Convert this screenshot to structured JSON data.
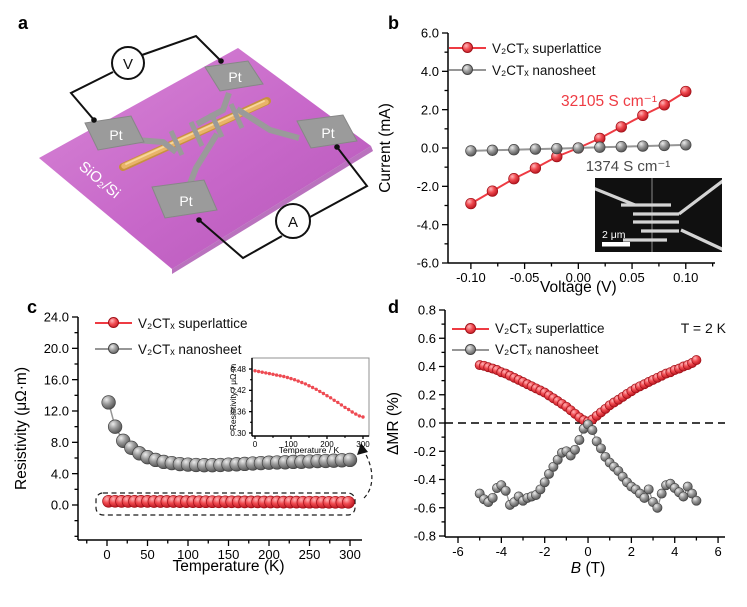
{
  "panels": {
    "a": {
      "letter": "a"
    },
    "b": {
      "letter": "b"
    },
    "c": {
      "letter": "c"
    },
    "d": {
      "letter": "d"
    }
  },
  "panel_a": {
    "substrate_label": "SiO₂/Si",
    "electrode_labels": [
      "Pt",
      "Pt",
      "Pt",
      "Pt"
    ],
    "voltmeter_label": "V",
    "ammeter_label": "A"
  },
  "sem_inset": {
    "scale_bar_label": "2 μm"
  },
  "colors": {
    "superlattice": "#ee3b43",
    "nanosheet": "#969696"
  },
  "chart_data": [
    {
      "id": "b",
      "type": "line",
      "xlabel": "Voltage (V)",
      "ylabel": "Current (mA)",
      "xlim": [
        -0.12,
        0.12
      ],
      "ylim": [
        -6,
        6
      ],
      "xticks": {
        "values": [
          -0.1,
          -0.05,
          0,
          0.05,
          0.1
        ],
        "labels": [
          "-0.10",
          "-0.05",
          "0.00",
          "0.05",
          "0.10"
        ]
      },
      "yticks": {
        "values": [
          -6,
          -4,
          -2,
          0,
          2,
          4,
          6
        ],
        "labels": [
          "-6.0",
          "-4.0",
          "-2.0",
          "0.0",
          "2.0",
          "4.0",
          "6.0"
        ]
      },
      "legend_position": "top-left",
      "series": [
        {
          "name": "V₂CTₓ superlattice",
          "color": "#ee3b43",
          "marker": "red",
          "x": [
            -0.1,
            -0.08,
            -0.06,
            -0.04,
            -0.02,
            0,
            0.02,
            0.04,
            0.06,
            0.08,
            0.1
          ],
          "y": [
            -2.9,
            -2.25,
            -1.6,
            -1.05,
            -0.45,
            0.0,
            0.5,
            1.1,
            1.7,
            2.25,
            2.95
          ]
        },
        {
          "name": "V₂CTₓ nanosheet",
          "color": "#969696",
          "marker": "gray",
          "x": [
            -0.1,
            -0.08,
            -0.06,
            -0.04,
            -0.02,
            0,
            0.02,
            0.04,
            0.06,
            0.08,
            0.1
          ],
          "y": [
            -0.15,
            -0.12,
            -0.09,
            -0.06,
            -0.03,
            0.0,
            0.04,
            0.07,
            0.1,
            0.13,
            0.16
          ]
        }
      ],
      "annotations": [
        {
          "text": "32105 S cm⁻¹",
          "color": "#ee3b43"
        },
        {
          "text": "1374 S cm⁻¹",
          "color": "#4a4a4a"
        }
      ]
    },
    {
      "id": "c",
      "type": "line",
      "xlabel": "Temperature (K)",
      "ylabel": "Resistivity (μΩ·m)",
      "xlim": [
        -25,
        325
      ],
      "ylim": [
        -4,
        25
      ],
      "xticks": {
        "values": [
          0,
          50,
          100,
          150,
          200,
          250,
          300
        ],
        "labels": [
          "0",
          "50",
          "100",
          "150",
          "200",
          "250",
          "300"
        ]
      },
      "yticks": {
        "values": [
          0,
          4,
          8,
          12,
          16,
          20,
          24
        ],
        "labels": [
          "0.0",
          "4.0",
          "8.0",
          "12.0",
          "16.0",
          "20.0",
          "24.0"
        ]
      },
      "legend_position": "top-left",
      "series": [
        {
          "name": "V₂CTₓ superlattice",
          "color": "#ee3b43",
          "marker": "red",
          "x": [
            2,
            10,
            18,
            26,
            34,
            42,
            50,
            58,
            66,
            74,
            82,
            90,
            98,
            106,
            114,
            122,
            130,
            138,
            146,
            154,
            162,
            170,
            178,
            186,
            194,
            202,
            210,
            218,
            226,
            234,
            242,
            250,
            258,
            266,
            274,
            282,
            290,
            298
          ],
          "y": [
            0.47,
            0.467,
            0.464,
            0.461,
            0.458,
            0.455,
            0.452,
            0.449,
            0.446,
            0.443,
            0.44,
            0.436,
            0.432,
            0.428,
            0.424,
            0.42,
            0.416,
            0.412,
            0.408,
            0.404,
            0.4,
            0.396,
            0.392,
            0.388,
            0.384,
            0.38,
            0.376,
            0.372,
            0.368,
            0.364,
            0.36,
            0.357,
            0.354,
            0.351,
            0.349,
            0.347,
            0.346,
            0.345
          ]
        },
        {
          "name": "V₂CTₓ nanosheet",
          "color": "#969696",
          "marker": "gray",
          "x": [
            2,
            10,
            20,
            30,
            40,
            50,
            60,
            70,
            80,
            90,
            100,
            110,
            120,
            130,
            140,
            150,
            160,
            170,
            180,
            190,
            200,
            210,
            220,
            230,
            240,
            250,
            260,
            270,
            280,
            290,
            300
          ],
          "y": [
            13.1,
            10.0,
            8.2,
            7.3,
            6.6,
            6.1,
            5.75,
            5.5,
            5.35,
            5.22,
            5.15,
            5.1,
            5.08,
            5.08,
            5.1,
            5.15,
            5.2,
            5.25,
            5.3,
            5.35,
            5.4,
            5.42,
            5.45,
            5.5,
            5.52,
            5.55,
            5.6,
            5.62,
            5.65,
            5.7,
            5.75
          ]
        }
      ]
    },
    {
      "id": "c_inset",
      "type": "line",
      "xlabel": "Temperature / K",
      "ylabel": "Resistivity / μΩ·m",
      "xlim": [
        -10,
        315
      ],
      "ylim": [
        0.29,
        0.51
      ],
      "xticks": {
        "values": [
          0,
          100,
          200,
          300
        ],
        "labels": [
          "0",
          "100",
          "200",
          "300"
        ]
      },
      "yticks": {
        "values": [
          0.3,
          0.36,
          0.42,
          0.48
        ],
        "labels": [
          "0.30",
          "0.36",
          "0.42",
          "0.48"
        ]
      },
      "series": [
        {
          "name": "V₂CTₓ superlattice",
          "color": "#ee4a52",
          "marker": "red",
          "x": [
            0,
            10,
            20,
            30,
            40,
            50,
            60,
            70,
            80,
            90,
            100,
            110,
            120,
            130,
            140,
            150,
            160,
            170,
            180,
            190,
            200,
            210,
            220,
            230,
            240,
            250,
            260,
            270,
            280,
            290,
            300
          ],
          "y": [
            0.475,
            0.473,
            0.471,
            0.469,
            0.467,
            0.465,
            0.463,
            0.461,
            0.459,
            0.456,
            0.453,
            0.45,
            0.446,
            0.442,
            0.438,
            0.433,
            0.428,
            0.423,
            0.417,
            0.411,
            0.405,
            0.399,
            0.392,
            0.386,
            0.379,
            0.372,
            0.366,
            0.359,
            0.353,
            0.348,
            0.345
          ]
        }
      ]
    },
    {
      "id": "d",
      "type": "line",
      "xlabel": "B (T)",
      "xlabel_italic_prefix": "B",
      "xlabel_rest": " (T)",
      "ylabel": "ΔMR (%)",
      "xlim": [
        -6.5,
        6.5
      ],
      "ylim": [
        -0.8,
        0.8
      ],
      "zero_line": true,
      "extra_label": "T = 2 K",
      "xticks": {
        "values": [
          -6,
          -4,
          -2,
          0,
          2,
          4,
          6
        ],
        "labels": [
          "-6",
          "-4",
          "-2",
          "0",
          "2",
          "4",
          "6"
        ]
      },
      "yticks": {
        "values": [
          -0.8,
          -0.6,
          -0.4,
          -0.2,
          0,
          0.2,
          0.4,
          0.6,
          0.8
        ],
        "labels": [
          "-0.8",
          "-0.6",
          "-0.4",
          "-0.2",
          "0.0",
          "0.2",
          "0.4",
          "0.6",
          "0.8"
        ]
      },
      "legend_position": "top-left",
      "series": [
        {
          "name": "V₂CTₓ superlattice",
          "color": "#ee3b43",
          "marker": "red",
          "x": [
            -5,
            -4.8,
            -4.6,
            -4.4,
            -4.2,
            -4,
            -3.8,
            -3.6,
            -3.4,
            -3.2,
            -3,
            -2.8,
            -2.6,
            -2.4,
            -2.2,
            -2,
            -1.8,
            -1.6,
            -1.4,
            -1.2,
            -1,
            -0.8,
            -0.6,
            -0.4,
            -0.2,
            0,
            0.2,
            0.4,
            0.6,
            0.8,
            1,
            1.2,
            1.4,
            1.6,
            1.8,
            2,
            2.2,
            2.4,
            2.6,
            2.8,
            3,
            3.2,
            3.4,
            3.6,
            3.8,
            4,
            4.2,
            4.4,
            4.6,
            4.8,
            5
          ],
          "y": [
            0.41,
            0.405,
            0.395,
            0.385,
            0.375,
            0.36,
            0.35,
            0.335,
            0.32,
            0.305,
            0.29,
            0.275,
            0.26,
            0.245,
            0.23,
            0.215,
            0.195,
            0.175,
            0.155,
            0.135,
            0.115,
            0.09,
            0.065,
            0.04,
            0.02,
            0.01,
            0.025,
            0.05,
            0.075,
            0.1,
            0.125,
            0.145,
            0.165,
            0.185,
            0.205,
            0.225,
            0.245,
            0.26,
            0.275,
            0.29,
            0.305,
            0.32,
            0.335,
            0.35,
            0.36,
            0.375,
            0.385,
            0.4,
            0.41,
            0.425,
            0.445
          ]
        },
        {
          "name": "V₂CTₓ nanosheet",
          "color": "#969696",
          "marker": "gray",
          "x": [
            -5,
            -4.8,
            -4.6,
            -4.4,
            -4.2,
            -4,
            -3.8,
            -3.6,
            -3.4,
            -3.2,
            -3,
            -2.8,
            -2.6,
            -2.4,
            -2.2,
            -2,
            -1.8,
            -1.6,
            -1.4,
            -1.2,
            -1,
            -0.8,
            -0.6,
            -0.4,
            -0.2,
            0,
            0.2,
            0.4,
            0.6,
            0.8,
            1,
            1.2,
            1.4,
            1.6,
            1.8,
            2,
            2.2,
            2.4,
            2.6,
            2.8,
            3,
            3.2,
            3.4,
            3.6,
            3.8,
            4,
            4.2,
            4.4,
            4.6,
            4.8,
            5
          ],
          "y": [
            -0.5,
            -0.54,
            -0.56,
            -0.53,
            -0.46,
            -0.44,
            -0.48,
            -0.58,
            -0.56,
            -0.52,
            -0.55,
            -0.53,
            -0.52,
            -0.51,
            -0.47,
            -0.42,
            -0.36,
            -0.31,
            -0.26,
            -0.21,
            -0.2,
            -0.23,
            -0.19,
            -0.12,
            -0.04,
            -0.01,
            -0.05,
            -0.13,
            -0.18,
            -0.24,
            -0.28,
            -0.31,
            -0.34,
            -0.38,
            -0.42,
            -0.45,
            -0.47,
            -0.5,
            -0.53,
            -0.47,
            -0.56,
            -0.6,
            -0.5,
            -0.44,
            -0.43,
            -0.46,
            -0.49,
            -0.52,
            -0.45,
            -0.5,
            -0.55
          ]
        }
      ]
    }
  ]
}
